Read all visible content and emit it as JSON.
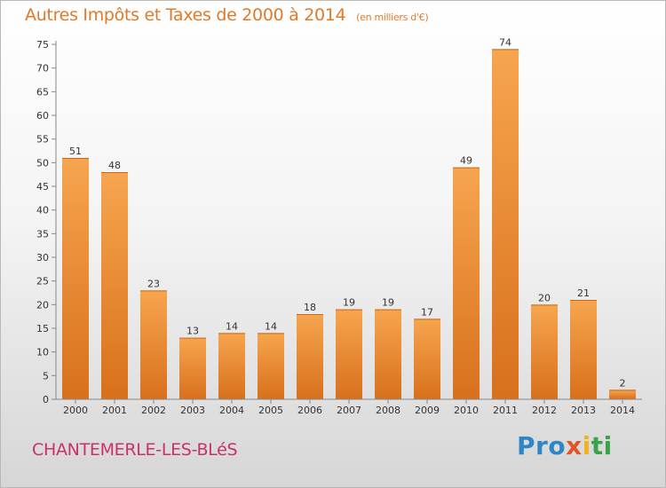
{
  "header": {
    "title": "Autres Impôts et Taxes de 2000 à 2014",
    "subtitle": "(en milliers d'€)"
  },
  "footer": {
    "place": "CHANTEMERLE-LES-BLéS",
    "brand": [
      "Pro",
      "x",
      "i",
      "ti"
    ]
  },
  "chart_data": {
    "type": "bar",
    "title": "Autres Impôts et Taxes de 2000 à 2014",
    "subtitle": "(en milliers d'€)",
    "xlabel": "",
    "ylabel": "",
    "categories": [
      "2000",
      "2001",
      "2002",
      "2003",
      "2004",
      "2005",
      "2006",
      "2007",
      "2008",
      "2009",
      "2010",
      "2011",
      "2012",
      "2013",
      "2014"
    ],
    "values": [
      51,
      48,
      23,
      13,
      14,
      14,
      18,
      19,
      19,
      17,
      49,
      74,
      20,
      21,
      2
    ],
    "ylim": [
      0,
      75
    ],
    "yticks": [
      0,
      5,
      10,
      15,
      20,
      25,
      30,
      35,
      40,
      45,
      50,
      55,
      60,
      65,
      70,
      75
    ],
    "grid": false,
    "legend": "none",
    "colors": {
      "bar_light": "#f7a54f",
      "bar_dark": "#d8701c"
    }
  }
}
